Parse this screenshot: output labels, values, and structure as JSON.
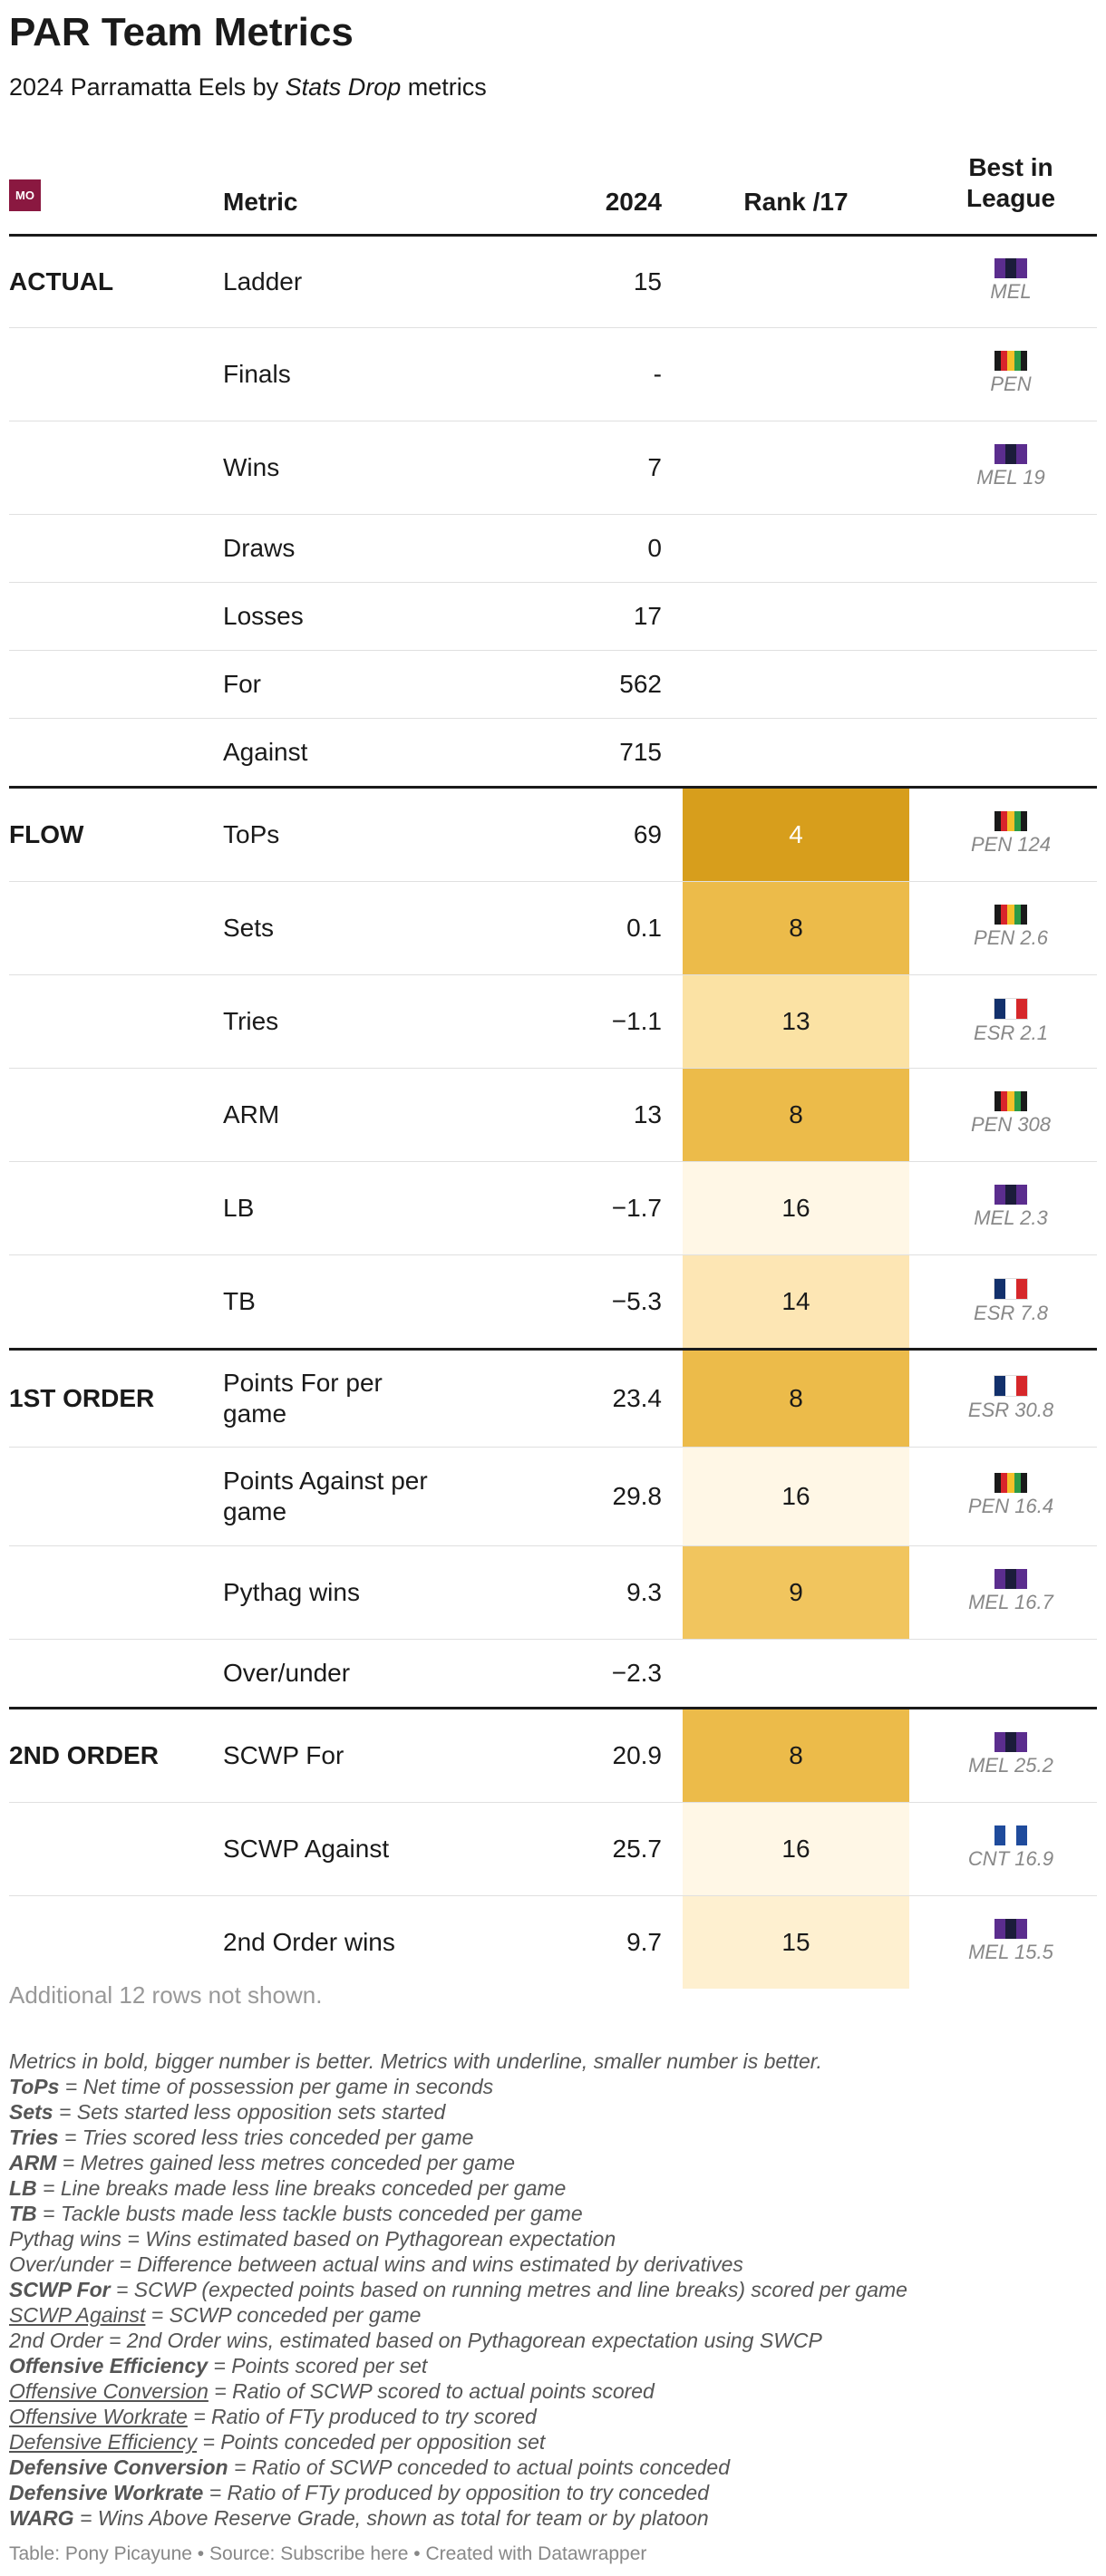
{
  "title": "PAR Team Metrics",
  "subtitle": {
    "prefix": "2024 Parramatta Eels by ",
    "source": "Stats Drop",
    "suffix": " metrics"
  },
  "header": {
    "logo": "MO",
    "metric": "Metric",
    "year": "2024",
    "rank": "Rank /17",
    "best_line1": "Best in",
    "best_line2": "League"
  },
  "colors": {
    "rank_4": "#d79e1c",
    "rank_8": "#ecbb4a",
    "rank_9": "#f1c55e",
    "rank_13": "#fbe2a4",
    "rank_14": "#fde6b4",
    "rank_15": "#fef0d0",
    "rank_16": "#fff7e6",
    "logo": "#8a1840"
  },
  "flags": {
    "MEL": [
      "#5b2d8e",
      "#1c1c3a",
      "#5b2d8e"
    ],
    "PEN": [
      "#1a1a1a",
      "#d9242b",
      "#f5c02a",
      "#2d9a47",
      "#1a1a1a"
    ],
    "ESR": [
      "#12306b",
      "#ffffff",
      "#d6272a"
    ],
    "CNT": [
      "#1f4b9c",
      "#ffffff",
      "#1f4b9c"
    ]
  },
  "rows": [
    {
      "section": "ACTUAL",
      "metric": "Ladder",
      "value": "15",
      "rank": "",
      "best": "MEL",
      "team": "MEL"
    },
    {
      "section": "",
      "metric": "Finals",
      "value": "-",
      "rank": "",
      "best": "PEN",
      "team": "PEN"
    },
    {
      "section": "",
      "metric": "Wins",
      "value": "7",
      "rank": "",
      "best": "MEL 19",
      "team": "MEL"
    },
    {
      "section": "",
      "metric": "Draws",
      "value": "0",
      "rank": "",
      "best": "",
      "team": ""
    },
    {
      "section": "",
      "metric": "Losses",
      "value": "17",
      "rank": "",
      "best": "",
      "team": ""
    },
    {
      "section": "",
      "metric": "For",
      "value": "562",
      "rank": "",
      "best": "",
      "team": ""
    },
    {
      "section": "",
      "metric": "Against",
      "value": "715",
      "rank": "",
      "best": "",
      "team": ""
    },
    {
      "section": "FLOW",
      "metric": "ToPs",
      "value": "69",
      "rank": "4",
      "best": "PEN 124",
      "team": "PEN"
    },
    {
      "section": "",
      "metric": "Sets",
      "value": "0.1",
      "rank": "8",
      "best": "PEN 2.6",
      "team": "PEN"
    },
    {
      "section": "",
      "metric": "Tries",
      "value": "−1.1",
      "rank": "13",
      "best": "ESR 2.1",
      "team": "ESR"
    },
    {
      "section": "",
      "metric": "ARM",
      "value": "13",
      "rank": "8",
      "best": "PEN 308",
      "team": "PEN"
    },
    {
      "section": "",
      "metric": "LB",
      "value": "−1.7",
      "rank": "16",
      "best": "MEL 2.3",
      "team": "MEL"
    },
    {
      "section": "",
      "metric": "TB",
      "value": "−5.3",
      "rank": "14",
      "best": "ESR 7.8",
      "team": "ESR"
    },
    {
      "section": "1ST ORDER",
      "metric": "Points For per game",
      "value": "23.4",
      "rank": "8",
      "best": "ESR 30.8",
      "team": "ESR"
    },
    {
      "section": "",
      "metric": "Points Against per game",
      "value": "29.8",
      "rank": "16",
      "best": "PEN 16.4",
      "team": "PEN"
    },
    {
      "section": "",
      "metric": "Pythag wins",
      "value": "9.3",
      "rank": "9",
      "best": "MEL 16.7",
      "team": "MEL"
    },
    {
      "section": "",
      "metric": "Over/under",
      "value": "−2.3",
      "rank": "",
      "best": "",
      "team": ""
    },
    {
      "section": "2ND ORDER",
      "metric": "SCWP For",
      "value": "20.9",
      "rank": "8",
      "best": "MEL 25.2",
      "team": "MEL"
    },
    {
      "section": "",
      "metric": "SCWP Against",
      "value": "25.7",
      "rank": "16",
      "best": "CNT 16.9",
      "team": "CNT"
    },
    {
      "section": "",
      "metric": "2nd Order wins",
      "value": "9.7",
      "rank": "15",
      "best": "MEL 15.5",
      "team": "MEL"
    }
  ],
  "note": "Additional 12 rows not shown.",
  "legend": [
    {
      "key": "",
      "key_style": "",
      "text": "Metrics in bold, bigger number is better. Metrics with underline, smaller number is better."
    },
    {
      "key": "ToPs",
      "key_style": "bold",
      "text": " = Net time of possession per game in seconds"
    },
    {
      "key": "Sets",
      "key_style": "bold",
      "text": " = Sets started less opposition sets started"
    },
    {
      "key": "Tries",
      "key_style": "bold",
      "text": " = Tries scored less tries conceded per game"
    },
    {
      "key": "ARM",
      "key_style": "bold",
      "text": " = Metres gained less metres conceded per game"
    },
    {
      "key": "LB",
      "key_style": "bold",
      "text": " = Line breaks made less line breaks conceded per game"
    },
    {
      "key": "TB",
      "key_style": "bold",
      "text": " = Tackle busts made less tackle busts conceded per game"
    },
    {
      "key": "",
      "key_style": "",
      "text": "Pythag wins = Wins estimated based on Pythagorean expectation"
    },
    {
      "key": "",
      "key_style": "",
      "text": "Over/under = Difference between actual wins and wins estimated by derivatives"
    },
    {
      "key": "SCWP For",
      "key_style": "bold",
      "text": " = SCWP (expected points based on running metres and line breaks) scored per game"
    },
    {
      "key": "SCWP Against",
      "key_style": "underline",
      "text": " = SCWP conceded per game"
    },
    {
      "key": "",
      "key_style": "",
      "text": "2nd Order = 2nd Order wins, estimated based on Pythagorean expectation using SWCP"
    },
    {
      "key": "Offensive Efficiency",
      "key_style": "bold",
      "text": " = Points scored per set"
    },
    {
      "key": "Offensive Conversion",
      "key_style": "underline",
      "text": " = Ratio of SCWP scored to actual points scored"
    },
    {
      "key": "Offensive Workrate",
      "key_style": "underline",
      "text": " = Ratio of FTy produced to try scored"
    },
    {
      "key": "Defensive Efficiency",
      "key_style": "underline",
      "text": " = Points conceded per opposition set"
    },
    {
      "key": "Defensive Conversion",
      "key_style": "bold",
      "text": " = Ratio of SCWP conceded to actual points conceded"
    },
    {
      "key": "Defensive Workrate",
      "key_style": "bold",
      "text": " = Ratio of FTy produced by opposition to try conceded"
    },
    {
      "key": "WARG",
      "key_style": "bold",
      "text": " = Wins Above Reserve Grade, shown as total for team or by platoon"
    }
  ],
  "footer": "Table: Pony Picayune • Source: Subscribe here • Created with Datawrapper"
}
